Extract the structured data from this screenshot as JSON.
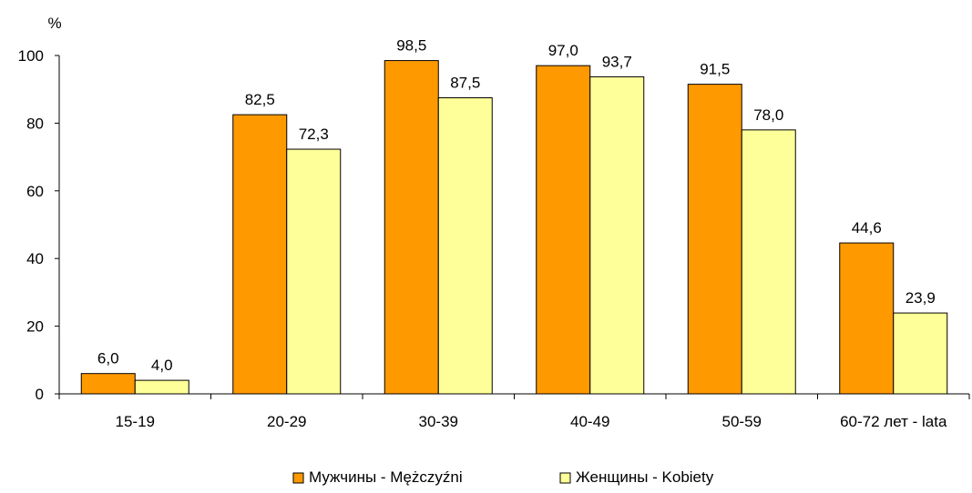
{
  "chart_data": {
    "type": "bar",
    "y_unit": "%",
    "ylim": [
      0,
      100
    ],
    "yticks": [
      0,
      20,
      40,
      60,
      80,
      100
    ],
    "grid": false,
    "legend_position": "bottom",
    "categories": [
      "15-19",
      "20-29",
      "30-39",
      "40-49",
      "50-59",
      "60-72 лет - lata"
    ],
    "series": [
      {
        "name": "Мужчины - Mężczyźni",
        "color": "#FF9900",
        "values": [
          6.0,
          82.5,
          98.5,
          97.0,
          91.5,
          44.6
        ],
        "labels": [
          "6,0",
          "82,5",
          "98,5",
          "97,0",
          "91,5",
          "44,6"
        ]
      },
      {
        "name": "Женщины - Kobiety",
        "color": "#FFFF99",
        "values": [
          4.0,
          72.3,
          87.5,
          93.7,
          78.0,
          23.9
        ],
        "labels": [
          "4,0",
          "72,3",
          "87,5",
          "93,7",
          "78,0",
          "23,9"
        ]
      }
    ]
  }
}
